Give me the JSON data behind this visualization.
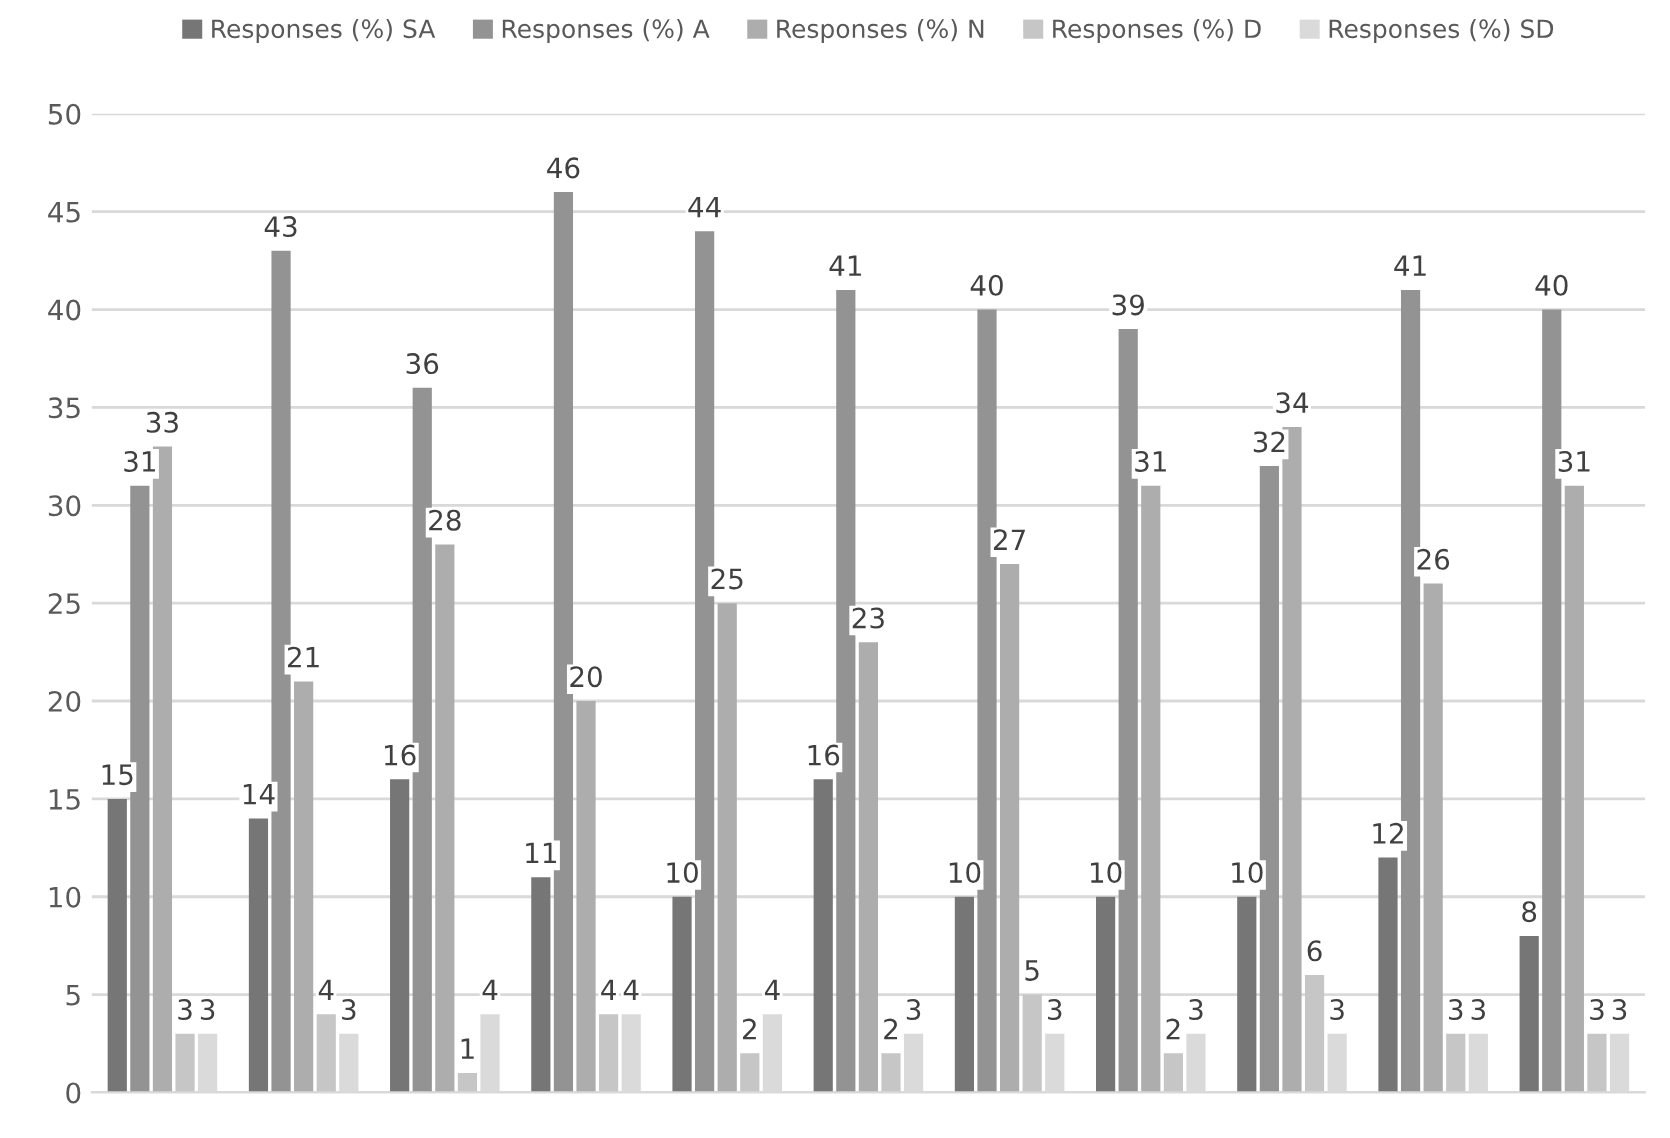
{
  "chart_data": {
    "type": "bar",
    "categories": [
      null,
      null,
      null,
      null,
      null,
      null,
      null,
      null,
      null,
      null,
      null
    ],
    "series": [
      {
        "name": "Responses (%) SA",
        "color": "#767676",
        "values": [
          15,
          14,
          16,
          11,
          10,
          16,
          10,
          10,
          10,
          12,
          8
        ]
      },
      {
        "name": "Responses (%) A",
        "color": "#939393",
        "values": [
          31,
          43,
          36,
          46,
          44,
          41,
          40,
          39,
          32,
          41,
          40
        ]
      },
      {
        "name": "Responses (%) N",
        "color": "#adadad",
        "values": [
          33,
          21,
          28,
          20,
          25,
          23,
          27,
          31,
          34,
          26,
          31
        ]
      },
      {
        "name": "Responses (%) D",
        "color": "#c6c6c6",
        "values": [
          3,
          4,
          1,
          4,
          2,
          2,
          5,
          2,
          6,
          3,
          3
        ]
      },
      {
        "name": "Responses (%) SD",
        "color": "#dadada",
        "values": [
          3,
          3,
          4,
          4,
          4,
          3,
          3,
          3,
          3,
          3,
          3
        ]
      }
    ],
    "ylim": [
      0,
      50
    ],
    "yticks": [
      0,
      5,
      10,
      15,
      20,
      25,
      30,
      35,
      40,
      45,
      50
    ],
    "grid": "y",
    "legend": "top",
    "data_labels": true
  }
}
